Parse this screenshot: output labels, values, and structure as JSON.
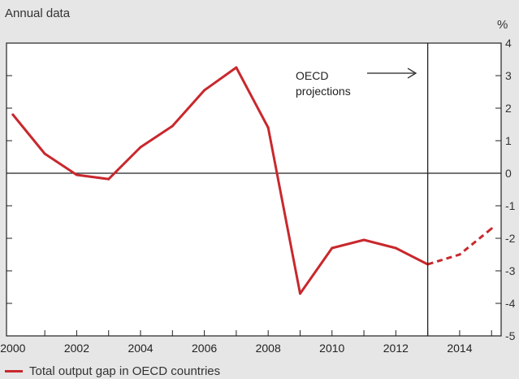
{
  "chart_data": {
    "type": "line",
    "subtitle": "Annual data",
    "unit": "%",
    "x": [
      2000,
      2001,
      2002,
      2003,
      2004,
      2005,
      2006,
      2007,
      2008,
      2009,
      2010,
      2011,
      2012,
      2013,
      2014,
      2015
    ],
    "series": [
      {
        "name": "Total output gap in OECD countries",
        "color": "#c8282d",
        "values": [
          1.8,
          0.6,
          -0.05,
          -0.18,
          0.8,
          1.45,
          2.55,
          3.25,
          1.4,
          -3.7,
          -2.3,
          -2.05,
          -2.3,
          -2.8,
          -2.5,
          -1.7
        ],
        "projection_from": 2013
      }
    ],
    "xticks": [
      "2000",
      "2002",
      "2004",
      "2006",
      "2008",
      "2010",
      "2012",
      "2014"
    ],
    "yticks": [
      "4",
      "3",
      "2",
      "1",
      "0",
      "-1",
      "-2",
      "-3",
      "-4",
      "-5"
    ],
    "xlim": [
      1999.8,
      2015.3
    ],
    "ylim": [
      -5,
      4
    ],
    "annotation": {
      "text_line1": "OECD",
      "text_line2": "projections",
      "x": 2013
    },
    "legend_position": "bottom-left"
  }
}
